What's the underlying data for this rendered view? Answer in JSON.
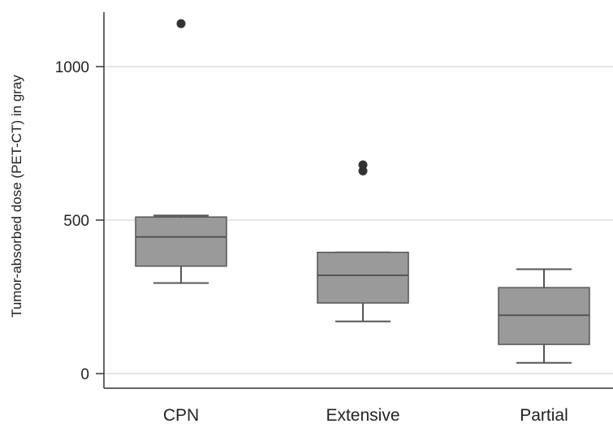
{
  "chart_data": {
    "type": "box",
    "title": "",
    "ylabel": "Tumor-absorbed dose (PET-CT) in gray",
    "xlabel": "",
    "ylim": [
      -40,
      1180
    ],
    "yticks": [
      0,
      500,
      1000
    ],
    "grid": true,
    "categories": [
      "CPN",
      "Extensive",
      "Partial"
    ],
    "boxes": [
      {
        "category": "CPN",
        "whisker_low": 295,
        "q1": 350,
        "median": 445,
        "q3": 510,
        "whisker_high": 515,
        "outliers": [
          1140
        ]
      },
      {
        "category": "Extensive",
        "whisker_low": 170,
        "q1": 230,
        "median": 320,
        "q3": 395,
        "whisker_high": 395,
        "outliers": [
          660,
          680
        ]
      },
      {
        "category": "Partial",
        "whisker_low": 35,
        "q1": 95,
        "median": 190,
        "q3": 280,
        "whisker_high": 340,
        "outliers": []
      }
    ],
    "colors": {
      "box_fill": "#9a9a9a",
      "box_edge": "#555555",
      "outlier": "#333333",
      "grid": "#e6e6e6",
      "axis": "#333333"
    }
  }
}
